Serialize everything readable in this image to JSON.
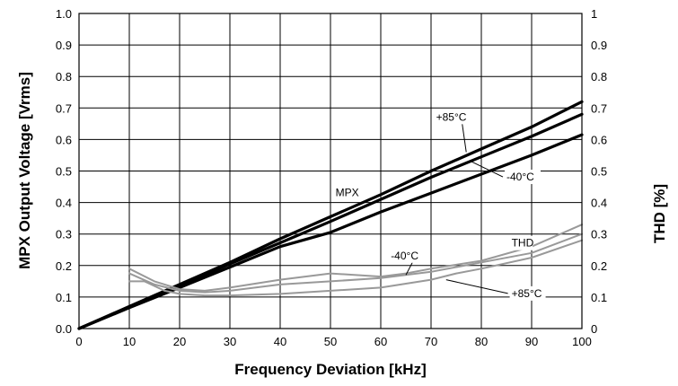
{
  "chart_data": {
    "type": "line",
    "title": "",
    "xlabel": "Frequency Deviation [kHz]",
    "ylabel": "MPX Output Voltage [Vrms]",
    "y2label": "THD [%]",
    "xlim": [
      0,
      100
    ],
    "ylim": [
      0,
      1.0
    ],
    "y2lim": [
      0,
      1
    ],
    "xticks": [
      0,
      10,
      20,
      30,
      40,
      50,
      60,
      70,
      80,
      90,
      100
    ],
    "xtick_labels": [
      "0",
      "10",
      "20",
      "30",
      "40",
      "50",
      "60",
      "70",
      "80",
      "90",
      "100"
    ],
    "yticks": [
      0,
      0.1,
      0.2,
      0.3,
      0.4,
      0.5,
      0.6,
      0.7,
      0.8,
      0.9,
      1.0
    ],
    "ytick_labels": [
      "0.0",
      "0.1",
      "0.2",
      "0.3",
      "0.4",
      "0.5",
      "0.6",
      "0.7",
      "0.8",
      "0.9",
      "1.0"
    ],
    "y2ticks": [
      0,
      0.1,
      0.2,
      0.3,
      0.4,
      0.5,
      0.6,
      0.7,
      0.8,
      0.9,
      1
    ],
    "y2tick_labels": [
      "0",
      "0.1",
      "0.2",
      "0.3",
      "0.4",
      "0.5",
      "0.6",
      "0.7",
      "0.8",
      "0.9",
      "1"
    ],
    "grid": true,
    "series": [
      {
        "group": "MPX",
        "color": "#000000",
        "x": [
          0,
          10,
          20,
          30,
          40,
          50,
          60,
          70,
          80,
          90,
          100
        ],
        "y": [
          0,
          0.07,
          0.14,
          0.21,
          0.285,
          0.355,
          0.425,
          0.5,
          0.57,
          0.64,
          0.72
        ]
      },
      {
        "group": "MPX",
        "color": "#000000",
        "x": [
          0,
          10,
          20,
          30,
          40,
          50,
          60,
          70,
          80,
          90,
          100
        ],
        "y": [
          0,
          0.068,
          0.135,
          0.205,
          0.272,
          0.34,
          0.41,
          0.48,
          0.545,
          0.61,
          0.68
        ]
      },
      {
        "group": "MPX",
        "color": "#000000",
        "x": [
          0,
          10,
          20,
          30,
          40,
          50,
          60,
          70,
          80,
          90,
          100
        ],
        "y": [
          0,
          0.066,
          0.13,
          0.195,
          0.26,
          0.305,
          0.37,
          0.43,
          0.49,
          0.55,
          0.615
        ]
      },
      {
        "group": "THD",
        "color": "#999999",
        "x": [
          10,
          15,
          20,
          25,
          30,
          40,
          50,
          60,
          65,
          70,
          80,
          90,
          100
        ],
        "y": [
          0.19,
          0.15,
          0.125,
          0.12,
          0.13,
          0.155,
          0.175,
          0.165,
          0.175,
          0.19,
          0.215,
          0.26,
          0.33
        ]
      },
      {
        "group": "THD",
        "color": "#999999",
        "x": [
          10,
          15,
          20,
          25,
          30,
          40,
          50,
          60,
          70,
          80,
          90,
          100
        ],
        "y": [
          0.175,
          0.14,
          0.12,
          0.115,
          0.12,
          0.14,
          0.15,
          0.16,
          0.18,
          0.21,
          0.24,
          0.3
        ]
      },
      {
        "group": "THD",
        "color": "#999999",
        "x": [
          10,
          13,
          17,
          20,
          25,
          30,
          40,
          50,
          60,
          70,
          75,
          80,
          90,
          100
        ],
        "y": [
          0.15,
          0.15,
          0.12,
          0.11,
          0.105,
          0.105,
          0.11,
          0.12,
          0.13,
          0.155,
          0.175,
          0.19,
          0.225,
          0.28
        ]
      }
    ],
    "annotations": [
      {
        "text": "+85°C",
        "x": 71,
        "y": 0.66,
        "leader_to": [
          77,
          0.56
        ]
      },
      {
        "text": "-40°C",
        "x": 85,
        "y": 0.47,
        "leader_to": [
          78,
          0.53
        ]
      },
      {
        "text": "MPX",
        "x": 51,
        "y": 0.42
      },
      {
        "text": "THD",
        "x": 86,
        "y": 0.26
      },
      {
        "text": "-40°C",
        "x": 62,
        "y": 0.22,
        "leader_to": [
          65,
          0.17
        ]
      },
      {
        "text": "+85°C",
        "x": 86,
        "y": 0.1,
        "leader_to": [
          73,
          0.155
        ]
      }
    ]
  }
}
